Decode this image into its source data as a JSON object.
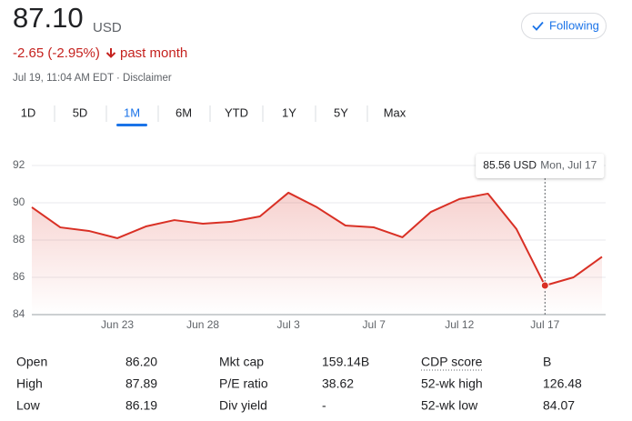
{
  "header": {
    "price": "87.10",
    "currency": "USD",
    "change": "-2.65 (-2.95%)",
    "period": "past month",
    "timestamp": "Jul 19, 11:04 AM EDT · Disclaimer",
    "follow_button": "Following"
  },
  "ranges": {
    "tabs": [
      "1D",
      "5D",
      "1M",
      "6M",
      "YTD",
      "1Y",
      "5Y",
      "Max"
    ],
    "selected": 2
  },
  "chart_data": {
    "type": "line",
    "categories": [
      null,
      null,
      null,
      "Jun 23",
      null,
      null,
      "Jun 28",
      null,
      null,
      "Jul 3",
      null,
      null,
      "Jul 7",
      null,
      null,
      "Jul 12",
      null,
      null,
      "Jul 17",
      null,
      null
    ],
    "values": [
      89.76,
      88.68,
      88.49,
      88.1,
      88.73,
      89.07,
      88.88,
      88.98,
      89.27,
      90.54,
      89.76,
      88.78,
      88.68,
      88.15,
      89.51,
      90.2,
      90.49,
      88.59,
      85.56,
      86.0,
      87.1
    ],
    "color": "#d93025",
    "ylim": [
      84,
      92
    ],
    "yticks": [
      84,
      86,
      88,
      90,
      92
    ],
    "grid": true,
    "tooltip": {
      "price": "85.56 USD",
      "date": "Mon, Jul 17"
    }
  },
  "stats": [
    [
      [
        "Open",
        "86.20"
      ],
      [
        "High",
        "87.89"
      ],
      [
        "Low",
        "86.19"
      ]
    ],
    [
      [
        "Mkt cap",
        "159.14B"
      ],
      [
        "P/E ratio",
        "38.62"
      ],
      [
        "Div yield",
        "-"
      ]
    ],
    [
      [
        "CDP score",
        "B"
      ],
      [
        "52-wk high",
        "126.48"
      ],
      [
        "52-wk low",
        "84.07"
      ]
    ]
  ]
}
